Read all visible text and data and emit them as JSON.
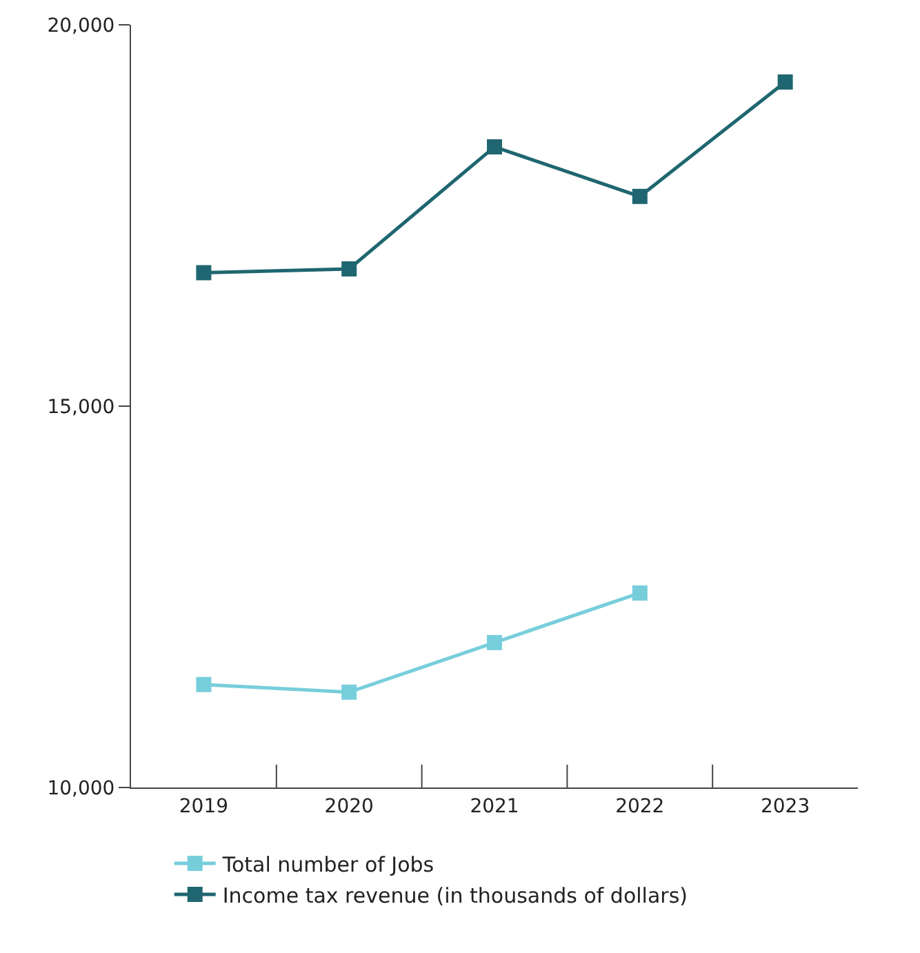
{
  "chart_data": {
    "type": "line",
    "categories": [
      "2019",
      "2020",
      "2021",
      "2022",
      "2023"
    ],
    "series": [
      {
        "name": "Total number of Jobs",
        "color": "#77cedb",
        "values": [
          11350,
          11250,
          11900,
          12550,
          null
        ]
      },
      {
        "name": "Income tax revenue (in thousands of dollars)",
        "color": "#1f6670",
        "values": [
          16750,
          16800,
          18400,
          17750,
          19250
        ]
      }
    ],
    "ylim": [
      10000,
      20000
    ],
    "yticks": [
      {
        "value": 10000,
        "label": "10,000"
      },
      {
        "value": 15000,
        "label": "15,000"
      },
      {
        "value": 20000,
        "label": "20,000"
      }
    ],
    "grid": false,
    "legend": "bottom",
    "marker": "square",
    "line_style": "solid"
  }
}
